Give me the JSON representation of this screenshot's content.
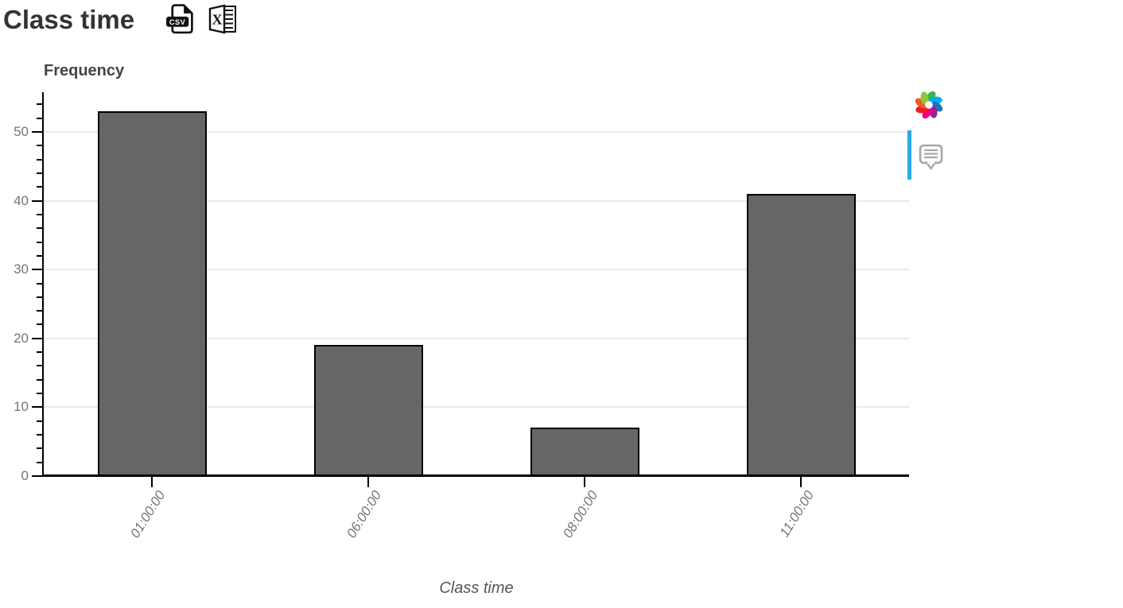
{
  "header": {
    "title": "Class time",
    "export_csv_icon": "csv-file-icon",
    "export_excel_icon": "excel-file-icon",
    "csv_badge_text": "CSV",
    "excel_letter": "X"
  },
  "chart_data": {
    "type": "bar",
    "title": "Class time",
    "categories": [
      "01:00:00",
      "06:00:00",
      "08:00:00",
      "11:00:00"
    ],
    "values": [
      53,
      19,
      7,
      41
    ],
    "xlabel": "Class time",
    "ylabel": "Frequency",
    "ylim": [
      0,
      55.7
    ],
    "yticks": [
      0,
      10,
      20,
      30,
      40,
      50
    ],
    "minor_tick_step": 2,
    "grid": true,
    "legend": "none",
    "bar_color": "#666666",
    "bar_border_color": "#000000",
    "gridline_color": "#e9e9e9",
    "tick_label_color": "#757575"
  },
  "side_panel": {
    "logo_icon": "colorful-pinwheel-logo",
    "comment_icon": "speech-bubble-icon",
    "scrollbar_color": "#29abe2",
    "logo_colors": [
      "#39b54a",
      "#00aeef",
      "#1b75bc",
      "#92278f",
      "#ec008c",
      "#ed1c24",
      "#f15a24",
      "#8dc63f"
    ]
  }
}
